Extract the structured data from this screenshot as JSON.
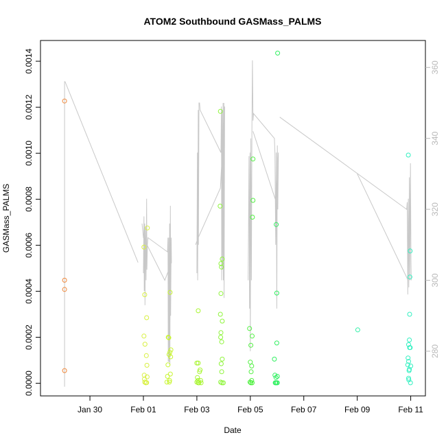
{
  "chart_data": {
    "type": "scatter",
    "title": "ATOM2 Southbound GASMass_PALMS",
    "xlabel": "Date",
    "ylabel": "GASMass_PALMS",
    "x_ticks": [
      "Jan 30",
      "Feb 01",
      "Feb 03",
      "Feb 05",
      "Feb 07",
      "Feb 09",
      "Feb 11"
    ],
    "x_tick_values": [
      -2,
      0,
      2,
      4,
      6,
      8,
      10
    ],
    "x_unit": "days relative to Feb 01",
    "xlim": [
      -3.85,
      10.55
    ],
    "y_ticks": [
      "0.0000",
      "0.0002",
      "0.0004",
      "0.0006",
      "0.0008",
      "0.0010",
      "0.0012",
      "0.0014"
    ],
    "y_tick_values": [
      0,
      0.0002,
      0.0004,
      0.0006,
      0.0008,
      0.001,
      0.0012,
      0.0014
    ],
    "ylim": [
      -5.5e-05,
      0.00149
    ],
    "y2_ticks": [
      "280",
      "300",
      "320",
      "340",
      "360"
    ],
    "y2_tick_values": [
      280,
      300,
      320,
      340,
      360
    ],
    "y2lim": [
      267.4,
      367.6
    ],
    "y2_label": "",
    "points": [
      {
        "x": -2.95,
        "y": 0.001227,
        "color": "#f0883a"
      },
      {
        "x": -2.95,
        "y": 0.000448,
        "color": "#f0883a"
      },
      {
        "x": -2.95,
        "y": 0.000408,
        "color": "#f0883a"
      },
      {
        "x": -2.95,
        "y": 5.5e-05,
        "color": "#f0883a"
      },
      {
        "x": 0.02,
        "y": 0.000592,
        "color": "#d8f040"
      },
      {
        "x": 0.05,
        "y": 0.000385,
        "color": "#d8f040"
      },
      {
        "x": 0.02,
        "y": 0.000205,
        "color": "#d8f040"
      },
      {
        "x": 0.06,
        "y": 0.00017,
        "color": "#d8f040"
      },
      {
        "x": 0.03,
        "y": 3.5e-05,
        "color": "#d8f040"
      },
      {
        "x": 0.04,
        "y": 1.8e-05,
        "color": "#d8f040"
      },
      {
        "x": 0.05,
        "y": 5e-06,
        "color": "#d8f040"
      },
      {
        "x": 0.09,
        "y": 2e-06,
        "color": "#d8f040"
      },
      {
        "x": 0.12,
        "y": 3e-06,
        "color": "#d8f040"
      },
      {
        "x": 0.14,
        "y": 2.8e-05,
        "color": "#d8f040"
      },
      {
        "x": 0.11,
        "y": 0.00012,
        "color": "#d8f040"
      },
      {
        "x": 0.13,
        "y": 7.8e-05,
        "color": "#d8f040"
      },
      {
        "x": 0.15,
        "y": 0.000675,
        "color": "#d8f040"
      },
      {
        "x": 0.12,
        "y": 0.000285,
        "color": "#d8f040"
      },
      {
        "x": 0.88,
        "y": 5e-06,
        "color": "#c8f530"
      },
      {
        "x": 0.9,
        "y": 3e-05,
        "color": "#c8f530"
      },
      {
        "x": 0.92,
        "y": 8e-05,
        "color": "#c8f530"
      },
      {
        "x": 0.93,
        "y": 0.0002,
        "color": "#c8f530"
      },
      {
        "x": 0.95,
        "y": 0.000198,
        "color": "#c8f530"
      },
      {
        "x": 0.96,
        "y": 0.000125,
        "color": "#c8f530"
      },
      {
        "x": 0.97,
        "y": 5e-06,
        "color": "#c8f530"
      },
      {
        "x": 0.98,
        "y": 1.2e-05,
        "color": "#c8f530"
      },
      {
        "x": 0.99,
        "y": 0.000135,
        "color": "#c8f530"
      },
      {
        "x": 1.0,
        "y": 0.000395,
        "color": "#c8f530"
      },
      {
        "x": 1.01,
        "y": 4e-05,
        "color": "#c8f530"
      },
      {
        "x": 1.02,
        "y": 0.000115,
        "color": "#c8f530"
      },
      {
        "x": 1.03,
        "y": 0.000145,
        "color": "#c8f530"
      },
      {
        "x": 2.05,
        "y": 0.000315,
        "color": "#a8f530"
      },
      {
        "x": 2.0,
        "y": 8.8e-05,
        "color": "#a8f530"
      },
      {
        "x": 2.05,
        "y": 8.8e-05,
        "color": "#a8f530"
      },
      {
        "x": 2.02,
        "y": 2.5e-05,
        "color": "#a8f530"
      },
      {
        "x": 2.04,
        "y": 1.2e-05,
        "color": "#a8f530"
      },
      {
        "x": 2.05,
        "y": 2e-06,
        "color": "#a8f530"
      },
      {
        "x": 2.08,
        "y": 2e-06,
        "color": "#a8f530"
      },
      {
        "x": 2.1,
        "y": 5e-05,
        "color": "#a8f530"
      },
      {
        "x": 2.12,
        "y": 5.8e-05,
        "color": "#a8f530"
      },
      {
        "x": 2.14,
        "y": 1.2e-05,
        "color": "#a8f530"
      },
      {
        "x": 2.16,
        "y": 2e-06,
        "color": "#a8f530"
      },
      {
        "x": 2.0,
        "y": 5e-06,
        "color": "#a8f530"
      },
      {
        "x": 2.88,
        "y": 0.001182,
        "color": "#8ef53a"
      },
      {
        "x": 2.87,
        "y": 0.00077,
        "color": "#8ef53a"
      },
      {
        "x": 2.9,
        "y": 0.00052,
        "color": "#8ef53a"
      },
      {
        "x": 2.92,
        "y": 0.000505,
        "color": "#8ef53a"
      },
      {
        "x": 2.95,
        "y": 0.00054,
        "color": "#8ef53a"
      },
      {
        "x": 2.9,
        "y": 0.00039,
        "color": "#8ef53a"
      },
      {
        "x": 2.88,
        "y": 0.0003,
        "color": "#8ef53a"
      },
      {
        "x": 2.95,
        "y": 0.00027,
        "color": "#8ef53a"
      },
      {
        "x": 2.9,
        "y": 0.00022,
        "color": "#8ef53a"
      },
      {
        "x": 2.89,
        "y": 0.0002,
        "color": "#8ef53a"
      },
      {
        "x": 2.93,
        "y": 0.00018,
        "color": "#8ef53a"
      },
      {
        "x": 2.95,
        "y": 0.000105,
        "color": "#8ef53a"
      },
      {
        "x": 2.91,
        "y": 8.5e-05,
        "color": "#8ef53a"
      },
      {
        "x": 2.93,
        "y": 5e-05,
        "color": "#8ef53a"
      },
      {
        "x": 2.89,
        "y": 5e-06,
        "color": "#8ef53a"
      },
      {
        "x": 2.94,
        "y": 2e-06,
        "color": "#8ef53a"
      },
      {
        "x": 2.99,
        "y": 2e-06,
        "color": "#8ef53a"
      },
      {
        "x": 3.97,
        "y": 0.000238,
        "color": "#50f040"
      },
      {
        "x": 4.02,
        "y": 0.000165,
        "color": "#50f040"
      },
      {
        "x": 4.07,
        "y": 0.000205,
        "color": "#50f040"
      },
      {
        "x": 4.0,
        "y": 9.2e-05,
        "color": "#50f040"
      },
      {
        "x": 4.03,
        "y": 5e-05,
        "color": "#50f040"
      },
      {
        "x": 4.05,
        "y": 7.5e-05,
        "color": "#50f040"
      },
      {
        "x": 3.99,
        "y": 5e-06,
        "color": "#50f040"
      },
      {
        "x": 4.02,
        "y": 2e-06,
        "color": "#50f040"
      },
      {
        "x": 4.05,
        "y": 1.2e-05,
        "color": "#50f040"
      },
      {
        "x": 4.07,
        "y": 2e-06,
        "color": "#50f040"
      },
      {
        "x": 4.1,
        "y": 0.000975,
        "color": "#50f040"
      },
      {
        "x": 4.1,
        "y": 0.000795,
        "color": "#50f040"
      },
      {
        "x": 4.08,
        "y": 0.000722,
        "color": "#50f040"
      },
      {
        "x": 5.02,
        "y": 0.001435,
        "color": "#30f060"
      },
      {
        "x": 4.97,
        "y": 0.00069,
        "color": "#30f060"
      },
      {
        "x": 4.99,
        "y": 0.000392,
        "color": "#30f060"
      },
      {
        "x": 4.99,
        "y": 0.000175,
        "color": "#30f060"
      },
      {
        "x": 4.9,
        "y": 0.000105,
        "color": "#30f060"
      },
      {
        "x": 4.92,
        "y": 3.5e-05,
        "color": "#30f060"
      },
      {
        "x": 4.96,
        "y": 2.5e-05,
        "color": "#30f060"
      },
      {
        "x": 5.01,
        "y": 3e-05,
        "color": "#30f060"
      },
      {
        "x": 4.93,
        "y": 2e-06,
        "color": "#30f060"
      },
      {
        "x": 4.95,
        "y": 2e-06,
        "color": "#30f060"
      },
      {
        "x": 4.98,
        "y": 2e-06,
        "color": "#30f060"
      },
      {
        "x": 5.01,
        "y": 2e-06,
        "color": "#30f060"
      },
      {
        "x": 8.02,
        "y": 0.000232,
        "color": "#30f0a8"
      },
      {
        "x": 9.91,
        "y": 0.000992,
        "color": "#30f0c0"
      },
      {
        "x": 9.98,
        "y": 0.000575,
        "color": "#30f0c0"
      },
      {
        "x": 9.97,
        "y": 0.000462,
        "color": "#30f0c0"
      },
      {
        "x": 9.96,
        "y": 0.0003,
        "color": "#30f0c0"
      },
      {
        "x": 9.95,
        "y": 0.000188,
        "color": "#30f0c0"
      },
      {
        "x": 9.92,
        "y": 0.000168,
        "color": "#30f0c0"
      },
      {
        "x": 9.96,
        "y": 0.000155,
        "color": "#30f0c0"
      },
      {
        "x": 9.98,
        "y": 0.000155,
        "color": "#30f0c0"
      },
      {
        "x": 9.9,
        "y": 0.00011,
        "color": "#30f0c0"
      },
      {
        "x": 9.92,
        "y": 9.5e-05,
        "color": "#30f0c0"
      },
      {
        "x": 9.89,
        "y": 8e-05,
        "color": "#30f0c0"
      },
      {
        "x": 10.0,
        "y": 7.5e-05,
        "color": "#30f0c0"
      },
      {
        "x": 9.95,
        "y": 6e-05,
        "color": "#30f0c0"
      },
      {
        "x": 9.94,
        "y": 5.5e-05,
        "color": "#30f0c0"
      },
      {
        "x": 9.92,
        "y": 2.2e-05,
        "color": "#30f0c0"
      },
      {
        "x": 9.93,
        "y": 1.5e-05,
        "color": "#30f0c0"
      },
      {
        "x": 9.99,
        "y": 2e-06,
        "color": "#30f0c0"
      }
    ],
    "trace": {
      "color": "#c8c8c8",
      "axis": "y2",
      "segments": [
        [
          [
            -2.95,
            270
          ],
          [
            -2.95,
            356
          ],
          [
            -2.93,
            356
          ],
          [
            -0.2,
            305
          ]
        ],
        [
          [
            0.0,
            302
          ],
          [
            0.02,
            318
          ],
          [
            0.03,
            297
          ],
          [
            0.05,
            316
          ],
          [
            0.06,
            293
          ],
          [
            0.08,
            315
          ],
          [
            0.1,
            300
          ],
          [
            0.12,
            323
          ],
          [
            0.13,
            303
          ],
          [
            0.15,
            310
          ],
          [
            0.17,
            312
          ],
          [
            0.9,
            308
          ],
          [
            0.92,
            312
          ],
          [
            0.93,
            277
          ],
          [
            0.95,
            312
          ],
          [
            0.96,
            277
          ],
          [
            0.98,
            316
          ],
          [
            0.99,
            276
          ],
          [
            1.01,
            321
          ],
          [
            1.02,
            290
          ],
          [
            1.04,
            312
          ],
          [
            1.05,
            305
          ],
          [
            0.8,
            300
          ],
          [
            0.0,
            312
          ],
          [
            -0.05,
            316
          ]
        ],
        [
          [
            2.0,
            302
          ],
          [
            2.02,
            336
          ],
          [
            2.03,
            300
          ],
          [
            2.05,
            348
          ],
          [
            2.06,
            310
          ],
          [
            2.08,
            350
          ],
          [
            2.1,
            350
          ],
          [
            2.12,
            348
          ],
          [
            2.9,
            336
          ],
          [
            2.92,
            349
          ],
          [
            2.93,
            300
          ],
          [
            2.95,
            348
          ],
          [
            2.96,
            303
          ],
          [
            2.98,
            350
          ],
          [
            2.99,
            300
          ],
          [
            3.01,
            350
          ],
          [
            3.02,
            295
          ],
          [
            3.04,
            349
          ],
          [
            2.88,
            326
          ],
          [
            2.05,
            312
          ],
          [
            1.95,
            310
          ]
        ],
        [
          [
            3.92,
            300
          ],
          [
            3.95,
            335
          ],
          [
            3.97,
            292
          ],
          [
            3.99,
            336
          ],
          [
            4.0,
            280
          ],
          [
            4.02,
            340
          ],
          [
            4.04,
            300
          ],
          [
            4.06,
            345
          ],
          [
            4.08,
            362
          ],
          [
            4.1,
            345
          ],
          [
            4.12,
            347
          ],
          [
            4.9,
            340
          ],
          [
            4.92,
            336
          ],
          [
            4.95,
            310
          ],
          [
            4.97,
            336
          ],
          [
            4.99,
            292
          ],
          [
            5.01,
            338
          ],
          [
            5.03,
            320
          ],
          [
            5.05,
            336
          ],
          [
            4.97,
            322
          ],
          [
            4.1,
            342
          ]
        ],
        [
          [
            5.1,
            346
          ],
          [
            9.85,
            320
          ],
          [
            9.87,
            322
          ],
          [
            9.89,
            296
          ],
          [
            9.91,
            323
          ],
          [
            9.93,
            298
          ],
          [
            9.95,
            329
          ],
          [
            9.97,
            300
          ],
          [
            9.99,
            333
          ],
          [
            10.01,
            305
          ],
          [
            10.02,
            300
          ]
        ],
        [
          [
            8.0,
            330
          ],
          [
            9.9,
            300
          ]
        ]
      ]
    }
  }
}
